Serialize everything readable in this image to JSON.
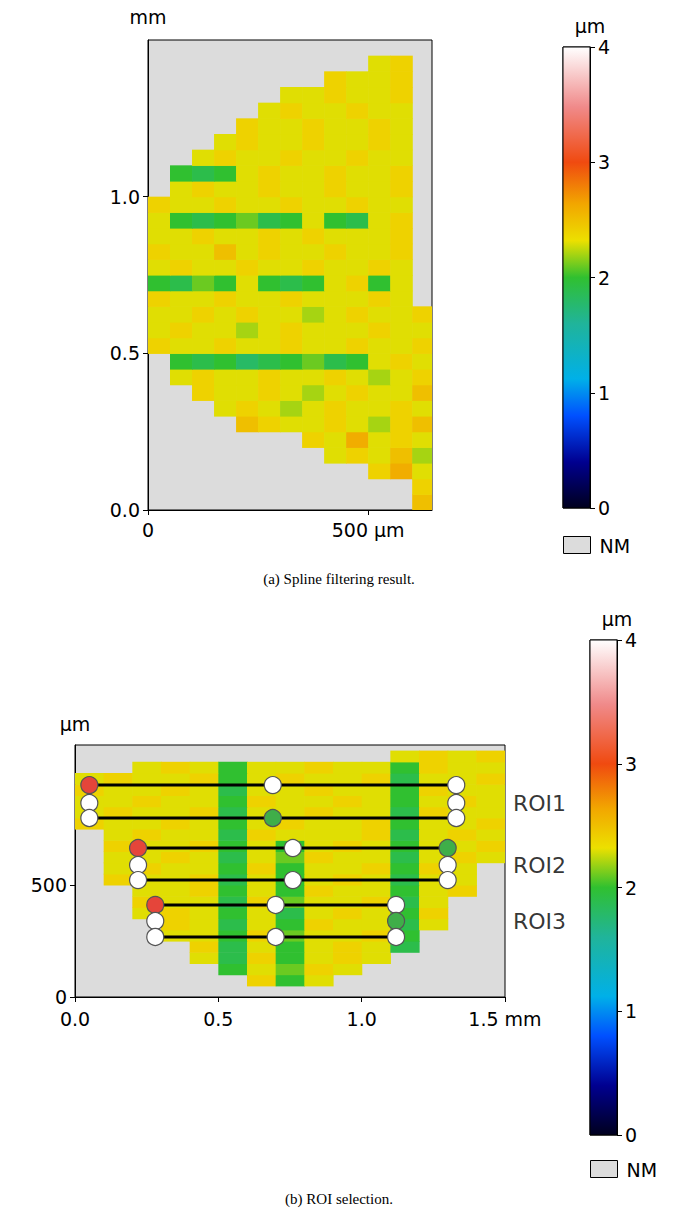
{
  "chart_data": [
    {
      "type": "heatmap",
      "title": "(a) Spline filtering result.",
      "ylabel": "mm",
      "xlim": [
        0,
        645
      ],
      "ylim": [
        0,
        1.5
      ],
      "xticks": [
        0,
        {
          "value": 500,
          "label": "500 µm"
        }
      ],
      "yticks": [
        {
          "value": 0,
          "label": "0.0"
        },
        0.5,
        {
          "value": 1,
          "label": "1.0"
        }
      ],
      "grid": false,
      "x": [
        25,
        75,
        125,
        175,
        225,
        275,
        325,
        375,
        425,
        475,
        525,
        575,
        625
      ],
      "y": [
        0.025,
        0.075,
        0.125,
        0.175,
        0.225,
        0.275,
        0.325,
        0.375,
        0.425,
        0.475,
        0.525,
        0.575,
        0.625,
        0.675,
        0.725,
        0.775,
        0.825,
        0.875,
        0.925,
        0.975,
        1.025,
        1.075,
        1.125,
        1.175,
        1.225,
        1.275,
        1.325,
        1.375,
        1.425,
        1.475
      ],
      "values": [
        [
          null,
          null,
          null,
          null,
          null,
          null,
          null,
          null,
          null,
          null,
          null,
          null,
          2.5
        ],
        [
          null,
          null,
          null,
          null,
          null,
          null,
          null,
          null,
          null,
          null,
          null,
          null,
          2.4
        ],
        [
          null,
          null,
          null,
          null,
          null,
          null,
          null,
          null,
          null,
          null,
          2.4,
          2.6,
          2.3
        ],
        [
          null,
          null,
          null,
          null,
          null,
          null,
          null,
          null,
          2.3,
          2.4,
          2.3,
          2.5,
          2.2
        ],
        [
          null,
          null,
          null,
          null,
          null,
          null,
          null,
          2.4,
          2.3,
          2.6,
          2.3,
          2.4,
          2.3
        ],
        [
          null,
          null,
          null,
          null,
          2.5,
          2.4,
          2.3,
          2.3,
          2.4,
          2.3,
          2.2,
          2.4,
          2.5
        ],
        [
          null,
          null,
          null,
          2.3,
          2.4,
          2.3,
          2.2,
          2.3,
          2.4,
          2.3,
          2.3,
          2.4,
          2.3
        ],
        [
          null,
          null,
          2.4,
          2.3,
          2.3,
          2.4,
          2.3,
          2.2,
          2.3,
          2.4,
          2.3,
          2.3,
          2.5
        ],
        [
          null,
          2.3,
          2.4,
          2.3,
          2.3,
          2.4,
          2.3,
          2.3,
          2.4,
          2.3,
          2.2,
          2.3,
          2.4
        ],
        [
          null,
          2.0,
          1.9,
          2.0,
          1.8,
          1.9,
          2.0,
          2.1,
          1.9,
          2.0,
          2.3,
          2.4,
          2.3
        ],
        [
          2.4,
          2.3,
          2.3,
          2.4,
          2.3,
          2.3,
          2.4,
          2.3,
          2.3,
          2.4,
          2.3,
          2.3,
          2.4
        ],
        [
          2.3,
          2.4,
          2.3,
          2.3,
          2.2,
          2.3,
          2.4,
          2.3,
          2.3,
          2.3,
          2.4,
          2.3,
          2.3
        ],
        [
          2.3,
          2.3,
          2.4,
          2.3,
          2.4,
          2.3,
          2.3,
          2.2,
          2.3,
          2.4,
          2.3,
          2.3,
          2.4
        ],
        [
          2.4,
          2.3,
          2.3,
          2.4,
          2.3,
          2.3,
          2.4,
          2.3,
          2.3,
          2.3,
          2.4,
          2.3,
          null
        ],
        [
          2.0,
          1.9,
          2.1,
          2.0,
          2.3,
          2.0,
          1.9,
          2.0,
          2.3,
          2.4,
          2.0,
          2.3,
          null
        ],
        [
          2.3,
          2.4,
          2.3,
          2.3,
          2.4,
          2.3,
          2.3,
          2.4,
          2.3,
          2.3,
          2.4,
          2.3,
          null
        ],
        [
          2.4,
          2.3,
          2.3,
          2.5,
          2.3,
          2.4,
          2.3,
          2.3,
          2.4,
          2.3,
          2.3,
          2.4,
          null
        ],
        [
          2.3,
          2.3,
          2.4,
          2.3,
          2.3,
          2.4,
          2.3,
          2.4,
          2.3,
          2.3,
          2.3,
          2.4,
          null
        ],
        [
          2.3,
          2.0,
          1.9,
          2.0,
          2.1,
          1.9,
          2.0,
          2.3,
          2.0,
          1.9,
          2.3,
          2.4,
          null
        ],
        [
          2.4,
          2.3,
          2.3,
          2.4,
          2.3,
          2.3,
          2.4,
          2.3,
          2.3,
          2.4,
          2.3,
          2.3,
          null
        ],
        [
          null,
          2.3,
          2.4,
          2.3,
          2.3,
          2.4,
          2.3,
          2.3,
          2.4,
          2.3,
          2.3,
          2.4,
          null
        ],
        [
          null,
          2.0,
          1.9,
          2.0,
          2.3,
          2.4,
          2.3,
          2.3,
          2.4,
          2.3,
          2.3,
          2.4,
          null
        ],
        [
          null,
          null,
          2.3,
          2.4,
          2.3,
          2.3,
          2.4,
          2.3,
          2.3,
          2.4,
          2.3,
          2.3,
          null
        ],
        [
          null,
          null,
          null,
          2.3,
          2.4,
          2.3,
          2.3,
          2.4,
          2.3,
          2.3,
          2.4,
          2.3,
          null
        ],
        [
          null,
          null,
          null,
          null,
          2.4,
          2.3,
          2.3,
          2.4,
          2.3,
          2.3,
          2.4,
          2.3,
          null
        ],
        [
          null,
          null,
          null,
          null,
          null,
          2.3,
          2.4,
          2.3,
          2.3,
          2.4,
          2.3,
          2.3,
          null
        ],
        [
          null,
          null,
          null,
          null,
          null,
          null,
          2.3,
          2.3,
          2.4,
          2.3,
          2.3,
          2.4,
          null
        ],
        [
          null,
          null,
          null,
          null,
          null,
          null,
          null,
          null,
          2.4,
          2.3,
          2.3,
          2.4,
          null
        ],
        [
          null,
          null,
          null,
          null,
          null,
          null,
          null,
          null,
          null,
          null,
          2.3,
          2.4,
          null
        ],
        [
          null,
          null,
          null,
          null,
          null,
          null,
          null,
          null,
          null,
          null,
          null,
          null,
          null
        ]
      ],
      "colorbar": {
        "label": "µm",
        "range": [
          0,
          4
        ],
        "ticks": [
          0,
          1,
          2,
          3,
          4
        ]
      },
      "missing_label": "NM"
    },
    {
      "type": "heatmap",
      "title": "(b) ROI selection.",
      "ylabel": "µm",
      "xlim": [
        0,
        1.5
      ],
      "ylim": [
        0,
        1125
      ],
      "xticks": [
        {
          "value": 0,
          "label": "0.0"
        },
        0.5,
        {
          "value": 1,
          "label": "1.0"
        },
        {
          "value": 1.5,
          "label": "1.5 mm"
        }
      ],
      "yticks": [
        0,
        500
      ],
      "grid": false,
      "x": [
        0.05,
        0.15,
        0.25,
        0.35,
        0.45,
        0.55,
        0.65,
        0.75,
        0.85,
        0.95,
        1.05,
        1.15,
        1.25,
        1.35,
        1.45
      ],
      "y": [
        25,
        75,
        125,
        175,
        225,
        275,
        325,
        375,
        425,
        475,
        525,
        575,
        625,
        675,
        725,
        775,
        825,
        875,
        925,
        975,
        1025,
        1075
      ],
      "values": [
        [
          null,
          null,
          null,
          null,
          null,
          null,
          null,
          null,
          null,
          null,
          null,
          null,
          null,
          null,
          null
        ],
        [
          null,
          null,
          null,
          null,
          null,
          null,
          2.4,
          2.0,
          2.3,
          null,
          null,
          null,
          null,
          null,
          null
        ],
        [
          null,
          null,
          null,
          null,
          null,
          2.0,
          2.3,
          2.1,
          2.4,
          2.3,
          null,
          null,
          null,
          null,
          null
        ],
        [
          null,
          null,
          null,
          null,
          2.3,
          1.9,
          2.4,
          2.0,
          2.3,
          2.4,
          2.3,
          null,
          null,
          null,
          null
        ],
        [
          null,
          null,
          null,
          null,
          2.4,
          1.9,
          2.3,
          2.0,
          2.3,
          2.4,
          2.3,
          1.9,
          null,
          null,
          null
        ],
        [
          null,
          null,
          null,
          2.3,
          2.3,
          2.0,
          2.4,
          2.1,
          2.3,
          2.3,
          2.4,
          2.0,
          null,
          null,
          null
        ],
        [
          null,
          null,
          null,
          2.4,
          2.3,
          1.9,
          2.3,
          2.0,
          2.4,
          2.3,
          2.3,
          1.9,
          2.3,
          null,
          null
        ],
        [
          null,
          null,
          2.3,
          2.4,
          2.3,
          2.0,
          2.3,
          1.9,
          2.3,
          2.4,
          2.3,
          2.0,
          2.4,
          null,
          null
        ],
        [
          null,
          null,
          2.4,
          2.3,
          2.3,
          1.9,
          2.4,
          2.1,
          2.3,
          2.3,
          2.4,
          1.9,
          2.3,
          null,
          null
        ],
        [
          null,
          null,
          2.3,
          2.3,
          2.4,
          2.0,
          2.3,
          2.0,
          2.4,
          2.3,
          2.3,
          2.0,
          2.3,
          2.4,
          null
        ],
        [
          null,
          2.4,
          2.3,
          2.3,
          2.4,
          1.9,
          2.3,
          2.0,
          2.3,
          2.4,
          2.3,
          1.9,
          2.3,
          2.3,
          null
        ],
        [
          null,
          2.3,
          2.4,
          2.3,
          2.3,
          2.0,
          2.4,
          2.0,
          2.3,
          2.3,
          2.4,
          2.0,
          2.4,
          2.3,
          null
        ],
        [
          null,
          2.3,
          2.3,
          2.4,
          2.3,
          1.9,
          2.3,
          2.1,
          2.4,
          2.3,
          2.3,
          1.9,
          2.3,
          2.4,
          2.3
        ],
        [
          null,
          2.4,
          2.3,
          2.3,
          2.4,
          2.0,
          2.3,
          2.0,
          2.3,
          2.4,
          2.3,
          2.0,
          2.3,
          2.3,
          2.4
        ],
        [
          null,
          2.3,
          2.4,
          2.3,
          2.3,
          1.9,
          2.4,
          2.3,
          2.3,
          2.3,
          2.4,
          1.9,
          2.3,
          2.4,
          2.3
        ],
        [
          2.4,
          2.3,
          2.3,
          2.4,
          2.3,
          2.0,
          2.3,
          2.4,
          2.3,
          2.3,
          2.4,
          2.0,
          2.3,
          2.3,
          2.4
        ],
        [
          2.3,
          2.4,
          2.3,
          2.3,
          2.4,
          1.9,
          2.3,
          2.3,
          2.4,
          2.3,
          2.3,
          1.9,
          2.4,
          2.3,
          2.3
        ],
        [
          2.3,
          2.3,
          2.4,
          2.3,
          2.3,
          2.0,
          2.4,
          2.3,
          2.3,
          2.4,
          2.3,
          2.0,
          2.3,
          2.4,
          2.3
        ],
        [
          2.4,
          2.3,
          2.3,
          2.4,
          2.3,
          1.9,
          2.3,
          2.3,
          2.4,
          2.3,
          2.3,
          2.0,
          2.4,
          2.3,
          2.3
        ],
        [
          2.3,
          2.4,
          2.3,
          2.3,
          2.4,
          2.0,
          2.3,
          2.4,
          2.3,
          2.3,
          2.4,
          1.9,
          2.3,
          2.3,
          2.4
        ],
        [
          null,
          null,
          2.3,
          2.4,
          2.3,
          2.0,
          2.3,
          2.3,
          2.4,
          2.3,
          2.3,
          2.0,
          2.4,
          2.3,
          2.3
        ],
        [
          null,
          null,
          null,
          null,
          null,
          null,
          null,
          null,
          null,
          null,
          null,
          2.3,
          2.4,
          2.3,
          2.4
        ]
      ],
      "colorbar": {
        "label": "µm",
        "range": [
          0,
          4
        ],
        "ticks": [
          0,
          1,
          2,
          3,
          4
        ]
      },
      "missing_label": "NM",
      "rois": [
        {
          "label": "ROI1",
          "label_y": 866,
          "lines": [
            {
              "y": 946,
              "x": [
                0.05,
                1.33
              ]
            },
            {
              "y": 799,
              "x": [
                0.05,
                1.33
              ]
            }
          ],
          "points": [
            {
              "x": 0.05,
              "y": 946,
              "color": "#e5453a"
            },
            {
              "x": 0.69,
              "y": 946,
              "color": "#ffffff"
            },
            {
              "x": 1.33,
              "y": 946,
              "color": "#ffffff"
            },
            {
              "x": 0.05,
              "y": 866,
              "color": "#ffffff"
            },
            {
              "x": 1.33,
              "y": 866,
              "color": "#ffffff"
            },
            {
              "x": 0.05,
              "y": 799,
              "color": "#ffffff"
            },
            {
              "x": 0.69,
              "y": 799,
              "color": "#3fae49"
            },
            {
              "x": 1.33,
              "y": 799,
              "color": "#ffffff"
            }
          ]
        },
        {
          "label": "ROI2",
          "label_y": 589,
          "lines": [
            {
              "y": 665,
              "x": [
                0.22,
                1.3
              ]
            },
            {
              "y": 522,
              "x": [
                0.22,
                1.3
              ]
            }
          ],
          "points": [
            {
              "x": 0.22,
              "y": 665,
              "color": "#e5453a"
            },
            {
              "x": 0.76,
              "y": 665,
              "color": "#ffffff"
            },
            {
              "x": 1.3,
              "y": 665,
              "color": "#3fae49"
            },
            {
              "x": 0.22,
              "y": 589,
              "color": "#ffffff"
            },
            {
              "x": 1.3,
              "y": 589,
              "color": "#ffffff"
            },
            {
              "x": 0.22,
              "y": 522,
              "color": "#ffffff"
            },
            {
              "x": 0.76,
              "y": 522,
              "color": "#ffffff"
            },
            {
              "x": 1.3,
              "y": 522,
              "color": "#ffffff"
            }
          ]
        },
        {
          "label": "ROI3",
          "label_y": 339,
          "lines": [
            {
              "y": 411,
              "x": [
                0.28,
                1.12
              ]
            },
            {
              "y": 268,
              "x": [
                0.28,
                1.12
              ]
            }
          ],
          "points": [
            {
              "x": 0.28,
              "y": 411,
              "color": "#e5453a"
            },
            {
              "x": 0.7,
              "y": 411,
              "color": "#ffffff"
            },
            {
              "x": 1.12,
              "y": 411,
              "color": "#ffffff"
            },
            {
              "x": 0.28,
              "y": 339,
              "color": "#ffffff"
            },
            {
              "x": 1.12,
              "y": 339,
              "color": "#3fae49"
            },
            {
              "x": 0.28,
              "y": 268,
              "color": "#ffffff"
            },
            {
              "x": 0.7,
              "y": 268,
              "color": "#ffffff"
            },
            {
              "x": 1.12,
              "y": 268,
              "color": "#ffffff"
            }
          ]
        }
      ]
    }
  ]
}
